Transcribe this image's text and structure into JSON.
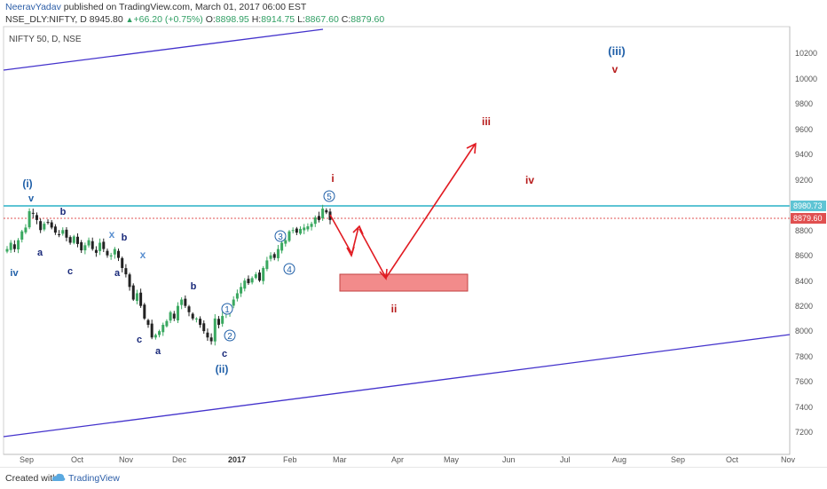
{
  "header": {
    "author": "NeeravYadav",
    "published_text": "published on TradingView.com, March 01, 2017 06:00 EST",
    "symbol_label": "NSE_DLY:NIFTY, D",
    "last_price": "8945.80",
    "change": "+66.20 (+0.75%)",
    "o_label": "O:",
    "o_value": "8898.95",
    "h_label": "H:",
    "h_value": "8914.75",
    "l_label": "L:",
    "l_value": "8867.60",
    "c_label": "C:",
    "c_value": "8879.60"
  },
  "chart": {
    "legend_title": "NIFTY 50, D, NSE",
    "resistance_label": "8980.73",
    "last_label": "8879.60"
  },
  "footer": {
    "created_with": "Created with",
    "brand": "TradingView"
  },
  "colors": {
    "wave_blue": "#1f5fa8",
    "wave_navy": "#1a2a7a",
    "wave_red": "#b71c1c",
    "arrow_red": "#e11b22",
    "channel": "#4433cc",
    "resistance": "#5ec4d4",
    "candle_up": "#3aa860",
    "candle_down": "#222222",
    "box_fill": "#f28b8b",
    "box_border": "#c24040"
  },
  "chart_data": {
    "type": "candlestick",
    "title": "NIFTY 50, D, NSE",
    "y_ticks": [
      10200,
      10000,
      9800,
      9600,
      9400,
      9200,
      8800,
      8600,
      8400,
      8200,
      8000,
      7800,
      7600,
      7400,
      7200
    ],
    "y_range": [
      7000,
      10460
    ],
    "x_ticks": [
      "Sep",
      "Oct",
      "Nov",
      "Dec",
      "2017",
      "Feb",
      "Mar",
      "Apr",
      "May",
      "Jun",
      "Jul",
      "Aug",
      "Sep",
      "Oct",
      "Nov"
    ],
    "horizontal_lines": [
      {
        "value": 8980.73,
        "label": "8980.73",
        "style": "solid"
      },
      {
        "value": 8879.6,
        "label": "8879.60",
        "style": "dotted"
      }
    ],
    "closes": [
      8650,
      8700,
      8650,
      8720,
      8790,
      8820,
      8950,
      8930,
      8880,
      8800,
      8850,
      8860,
      8820,
      8780,
      8760,
      8800,
      8740,
      8700,
      8750,
      8690,
      8640,
      8680,
      8720,
      8650,
      8620,
      8700,
      8650,
      8600,
      8600,
      8650,
      8580,
      8500,
      8450,
      8350,
      8250,
      8300,
      8200,
      8100,
      8050,
      7950,
      7970,
      8000,
      8050,
      8080,
      8150,
      8100,
      8200,
      8250,
      8200,
      8150,
      8100,
      8100,
      8050,
      8000,
      7950,
      7920,
      8100,
      8050,
      8120,
      8150,
      8200,
      8250,
      8300,
      8350,
      8400,
      8380,
      8420,
      8450,
      8400,
      8500,
      8560,
      8600,
      8580,
      8650,
      8700,
      8720,
      8790,
      8800,
      8780,
      8810,
      8820,
      8830,
      8850,
      8900,
      8880,
      8970,
      8940,
      8880
    ],
    "wave_labels": [
      "(i)",
      "v",
      "iv",
      "a",
      "b",
      "c",
      "x",
      "b",
      "a",
      "x",
      "c",
      "a",
      "b",
      "c",
      "(ii)",
      "1",
      "2",
      "3",
      "4",
      "5",
      "i",
      "ii",
      "iii",
      "iv",
      "v",
      "(iii)"
    ],
    "target_zone": {
      "low": 8305,
      "high": 8440
    },
    "projection_path": [
      8950,
      8650,
      8820,
      8420,
      9500
    ]
  }
}
